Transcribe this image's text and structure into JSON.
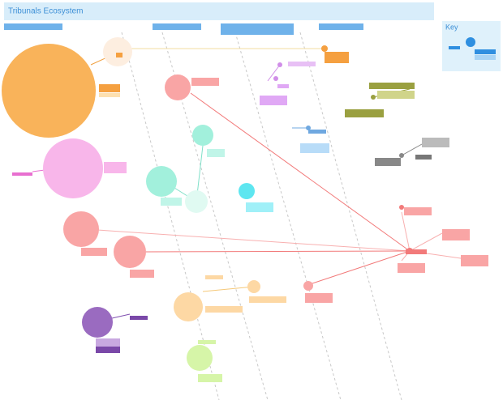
{
  "header": {
    "title": "Tribunals Ecosystem"
  },
  "key": {
    "title": "Key"
  }
}
